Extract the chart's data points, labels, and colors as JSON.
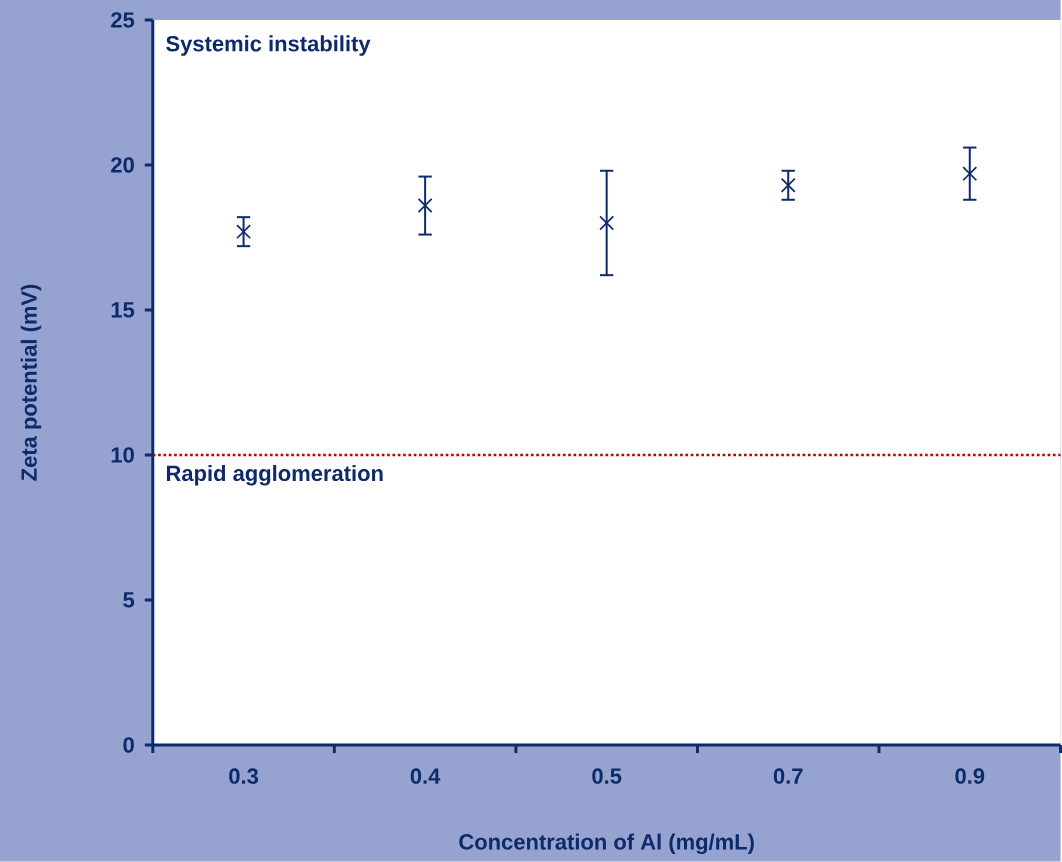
{
  "chart_data": {
    "type": "scatter",
    "categories": [
      "0.3",
      "0.4",
      "0.5",
      "0.7",
      "0.9"
    ],
    "values": [
      17.7,
      18.6,
      18.0,
      19.3,
      19.7
    ],
    "errors": [
      0.5,
      1.0,
      1.8,
      0.5,
      0.9
    ],
    "color": "#0d2a6b",
    "marker": "cross",
    "xlabel": "Concentration of Al (mg/mL)",
    "ylabel": "Zeta potential (mV)",
    "ylim": [
      0,
      25
    ],
    "yticks": [
      0,
      5,
      10,
      15,
      20,
      25
    ],
    "ref_lines": [
      {
        "axis": "y",
        "value": 10,
        "label": "Rapid agglomeration",
        "color": "#c00000",
        "line_style": "dotted"
      }
    ],
    "annotations": [
      "Systemic instability"
    ]
  }
}
